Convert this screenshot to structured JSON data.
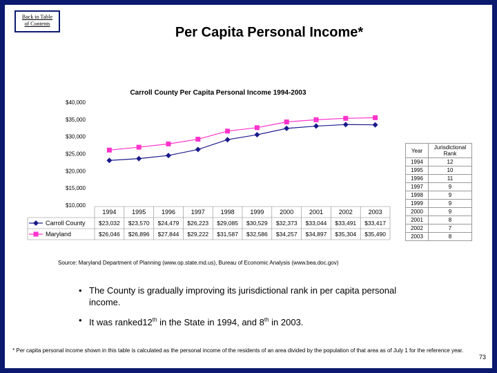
{
  "back_link": {
    "line1": "Back to Table",
    "line2": "of Contents"
  },
  "title": "Per Capita Personal Income*",
  "chart_data": {
    "type": "line",
    "title": "Carroll County Per Capita Personal Income 1994-2003",
    "categories": [
      "1994",
      "1995",
      "1996",
      "1997",
      "1998",
      "1999",
      "2000",
      "2001",
      "2002",
      "2003"
    ],
    "yticks": [
      "$40,000",
      "$35,000",
      "$30,000",
      "$25,000",
      "$20,000",
      "$15,000",
      "$10,000"
    ],
    "ylim": [
      10000,
      40000
    ],
    "series": [
      {
        "name": "Carroll County",
        "color": "#1a1a8c",
        "marker": "diamond",
        "values": [
          23032,
          23570,
          24479,
          26223,
          29085,
          30529,
          32373,
          33044,
          33491,
          33417
        ],
        "labels": [
          "$23,032",
          "$23,570",
          "$24,479",
          "$26,223",
          "$29,085",
          "$30,529",
          "$32,373",
          "$33,044",
          "$33,491",
          "$33,417"
        ]
      },
      {
        "name": "Maryland",
        "color": "#ff33cc",
        "marker": "square",
        "values": [
          26046,
          26896,
          27844,
          29222,
          31587,
          32586,
          34257,
          34897,
          35304,
          35490
        ],
        "labels": [
          "$26,046",
          "$26,896",
          "$27,844",
          "$29,222",
          "$31,587",
          "$32,586",
          "$34,257",
          "$34,897",
          "$35,304",
          "$35,490"
        ]
      }
    ]
  },
  "rank_table": {
    "headers": {
      "year": "Year",
      "rank_line1": "Jurisdictional",
      "rank_line2": "Rank"
    },
    "rows": [
      {
        "year": "1994",
        "rank": "12"
      },
      {
        "year": "1995",
        "rank": "10"
      },
      {
        "year": "1996",
        "rank": "11"
      },
      {
        "year": "1997",
        "rank": "9"
      },
      {
        "year": "1998",
        "rank": "9"
      },
      {
        "year": "1999",
        "rank": "9"
      },
      {
        "year": "2000",
        "rank": "9"
      },
      {
        "year": "2001",
        "rank": "8"
      },
      {
        "year": "2002",
        "rank": "7"
      },
      {
        "year": "2003",
        "rank": "8"
      }
    ]
  },
  "source": "Source: Maryland Department of Planning (www.op.state.md.us), Bureau of Economic Analysis (www.bea.doc.gov)",
  "bullets": [
    {
      "text": "The County is gradually improving its jurisdictional rank in per capita personal income."
    },
    {
      "pre": "It was ranked12",
      "sup1": "th",
      "mid": " in the State in 1994, and 8",
      "sup2": "th",
      "post": " in 2003."
    }
  ],
  "bullet_symbol": "•",
  "footnote": {
    "marker": "*",
    "text": "Per capita personal income shown in this table is calculated as the personal income of the residents of an area divided by the population of that area as of July 1 for the reference year."
  },
  "page_number": "73"
}
